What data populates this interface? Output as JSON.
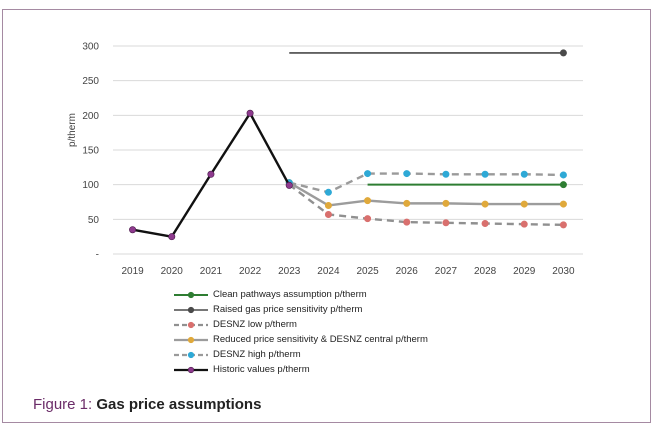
{
  "chart_data": {
    "type": "line",
    "title": "",
    "xlabel": "",
    "ylabel": "p/therm",
    "ylim": [
      0,
      300
    ],
    "x": [
      "2019",
      "2020",
      "2021",
      "2022",
      "2023",
      "2024",
      "2025",
      "2026",
      "2027",
      "2028",
      "2029",
      "2030"
    ],
    "yticks": [
      {
        "value": 0,
        "label": "-"
      },
      {
        "value": 50,
        "label": "50"
      },
      {
        "value": 100,
        "label": "100"
      },
      {
        "value": 150,
        "label": "150"
      },
      {
        "value": 200,
        "label": "200"
      },
      {
        "value": 250,
        "label": "250"
      },
      {
        "value": 300,
        "label": "300"
      }
    ],
    "grid": "horizontal",
    "series": [
      {
        "key": "clean",
        "name": "Clean pathways assumption p/therm",
        "color": "#2e7d32",
        "dash": false,
        "width": 2,
        "marker": "endpoint",
        "values": [
          null,
          null,
          null,
          null,
          null,
          null,
          100,
          100,
          100,
          100,
          100,
          100
        ]
      },
      {
        "key": "raised",
        "name": "Raised gas price sensitivity p/therm",
        "color": "#4a4a4a",
        "dash": false,
        "width": 1.6,
        "marker": "endpoint",
        "values": [
          null,
          null,
          null,
          null,
          290,
          290,
          290,
          290,
          290,
          290,
          290,
          290
        ]
      },
      {
        "key": "low",
        "name": "DESNZ low p/therm",
        "color": "#909090",
        "dash": true,
        "width": 2.4,
        "markerColor": "#d9706e",
        "marker": "all",
        "values": [
          null,
          null,
          null,
          null,
          100,
          57,
          51,
          46,
          45,
          44,
          43,
          42
        ]
      },
      {
        "key": "reduced",
        "name": "Reduced price sensitivity & DESNZ central p/therm",
        "color": "#9c9c9c",
        "dash": false,
        "width": 2.4,
        "markerColor": "#e0a93b",
        "marker": "all",
        "values": [
          null,
          null,
          null,
          null,
          103,
          70,
          77,
          73,
          73,
          72,
          72,
          72
        ]
      },
      {
        "key": "high",
        "name": "DESNZ high p/therm",
        "color": "#9a9a9a",
        "dash": true,
        "width": 2.4,
        "markerColor": "#2ea9d6",
        "marker": "all",
        "values": [
          null,
          null,
          null,
          null,
          103,
          89,
          116,
          116,
          115,
          115,
          115,
          114
        ]
      },
      {
        "key": "historic",
        "name": "Historic values p/therm",
        "color": "#111111",
        "dash": false,
        "width": 2.4,
        "markerColor": "#8e3a8e",
        "marker": "all",
        "values": [
          35,
          25,
          115,
          203,
          99,
          null,
          null,
          null,
          null,
          null,
          null,
          null
        ]
      }
    ]
  },
  "caption": {
    "figure_label": "Figure 1:",
    "title": "Gas price assumptions"
  }
}
